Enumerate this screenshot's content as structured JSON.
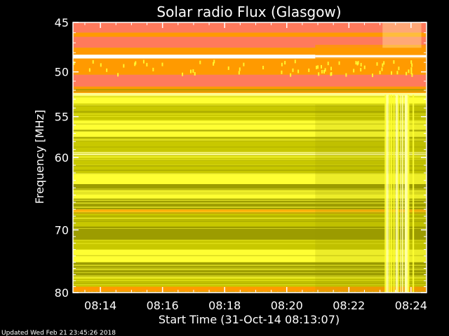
{
  "chart_data": {
    "type": "heatmap",
    "title": "Solar radio Flux (Glasgow)",
    "xlabel": "Start Time (31-Oct-14 08:13:07)",
    "ylabel": "Frequency [MHz]",
    "ylim": [
      45,
      80
    ],
    "y_scale": "log",
    "y_ticks": [
      {
        "value": 45,
        "label": "45"
      },
      {
        "value": 50,
        "label": "50"
      },
      {
        "value": 55,
        "label": "55"
      },
      {
        "value": 60,
        "label": "60"
      },
      {
        "value": 70,
        "label": "70"
      },
      {
        "value": 80,
        "label": "80"
      }
    ],
    "x_ticks": [
      "08:14",
      "08:16",
      "08:18",
      "08:20",
      "08:22",
      "08:24"
    ],
    "x_start": "08:13:07",
    "x_end": "08:24:30",
    "discontinuity_time": "08:20:55",
    "burst_interval": [
      "08:23:05",
      "08:24:20"
    ],
    "colors": {
      "background": "#000000",
      "dark": "#9c9c00",
      "mid": "#c8c800",
      "bright": "#ffff33",
      "peak": "#ffffaa",
      "orange": "#ff9a00",
      "salmon": "#ff7a5c",
      "white_line": "#ffffff"
    },
    "bands": [
      {
        "from": 45.0,
        "to": 46.0,
        "level": "salmon"
      },
      {
        "from": 46.0,
        "to": 46.4,
        "level": "orange"
      },
      {
        "from": 46.4,
        "to": 47.5,
        "level": "salmon"
      },
      {
        "from": 47.5,
        "to": 48.2,
        "level": "orange"
      },
      {
        "from": 48.2,
        "to": 48.6,
        "level": "white_line"
      },
      {
        "from": 48.6,
        "to": 50.3,
        "level": "orange"
      },
      {
        "from": 50.3,
        "to": 51.6,
        "level": "salmon"
      },
      {
        "from": 51.6,
        "to": 52.3,
        "level": "orange"
      },
      {
        "from": 52.3,
        "to": 52.6,
        "level": "peak"
      },
      {
        "from": 52.6,
        "to": 53.5,
        "level": "bright"
      },
      {
        "from": 53.5,
        "to": 55.5,
        "level": "mid"
      },
      {
        "from": 55.5,
        "to": 57.5,
        "level": "bright"
      },
      {
        "from": 57.5,
        "to": 59.3,
        "level": "mid"
      },
      {
        "from": 59.3,
        "to": 59.7,
        "level": "peak"
      },
      {
        "from": 59.7,
        "to": 62.0,
        "level": "mid"
      },
      {
        "from": 62.0,
        "to": 63.5,
        "level": "bright"
      },
      {
        "from": 63.5,
        "to": 64.5,
        "level": "dark"
      },
      {
        "from": 64.5,
        "to": 65.5,
        "level": "bright"
      },
      {
        "from": 65.5,
        "to": 67.0,
        "level": "dark"
      },
      {
        "from": 67.0,
        "to": 67.6,
        "level": "orange"
      },
      {
        "from": 67.6,
        "to": 69.5,
        "level": "mid"
      },
      {
        "from": 69.5,
        "to": 71.5,
        "level": "dark"
      },
      {
        "from": 71.5,
        "to": 73.0,
        "level": "mid"
      },
      {
        "from": 73.0,
        "to": 75.0,
        "level": "bright"
      },
      {
        "from": 75.0,
        "to": 77.5,
        "level": "dark"
      },
      {
        "from": 77.5,
        "to": 79.0,
        "level": "mid"
      },
      {
        "from": 79.0,
        "to": 80.0,
        "level": "orange"
      }
    ]
  },
  "footer": {
    "updated": "Updated Wed Feb 21 23:45:26 2018"
  }
}
